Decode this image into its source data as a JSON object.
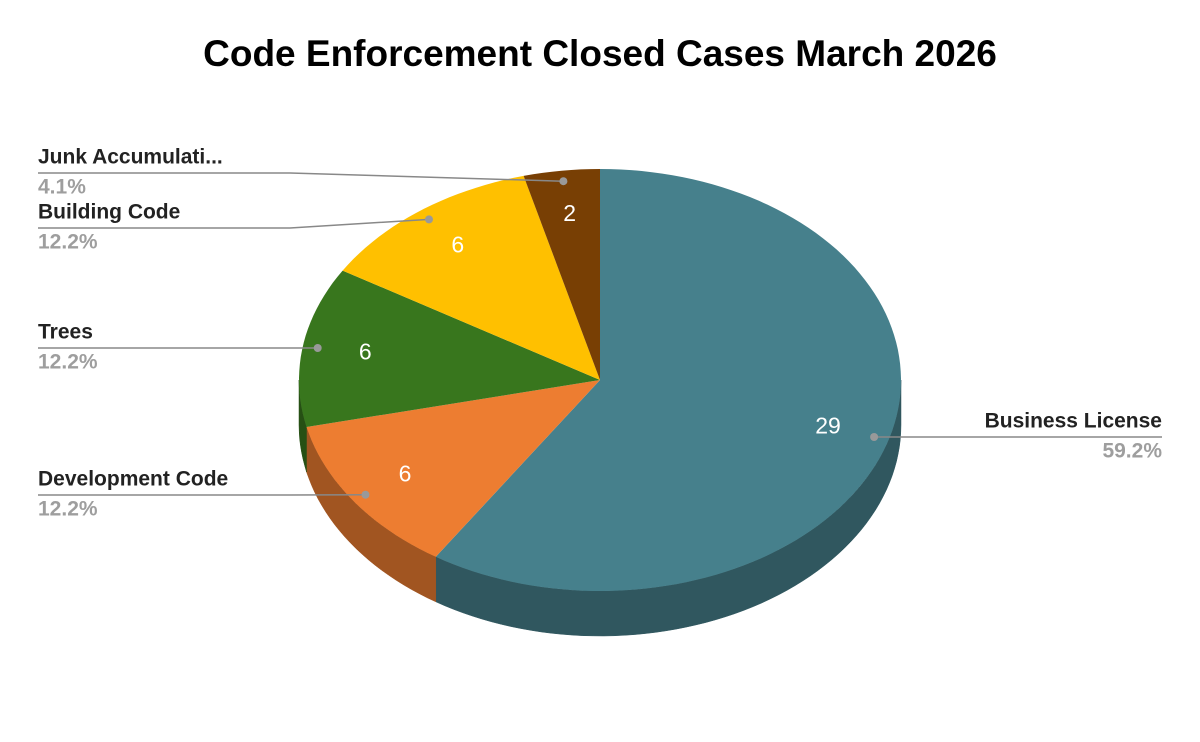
{
  "chart_data": {
    "type": "pie",
    "title": "Code Enforcement Closed Cases March 2026",
    "categories": [
      "Business License",
      "Development Code",
      "Trees",
      "Building Code",
      "Junk Accumulati..."
    ],
    "values": [
      29,
      6,
      6,
      6,
      2
    ],
    "percent_labels": [
      "59.2%",
      "12.2%",
      "12.2%",
      "12.2%",
      "4.1%"
    ],
    "colors": [
      "#46808c",
      "#ed7d31",
      "#38761d",
      "#ffc000",
      "#783f04"
    ]
  }
}
